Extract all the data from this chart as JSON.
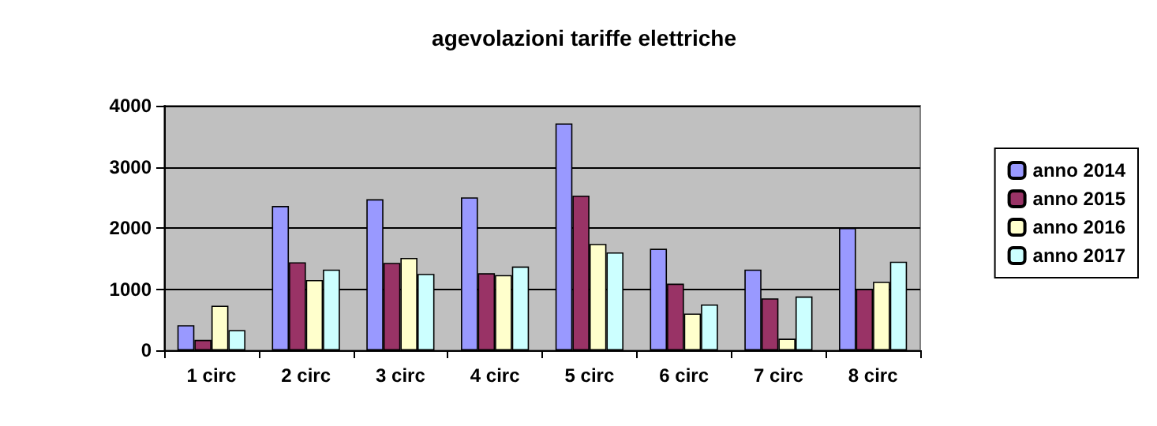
{
  "chart_data": {
    "type": "bar",
    "title": "agevolazioni tariffe elettriche",
    "categories": [
      "1 circ",
      "2 circ",
      "3 circ",
      "4 circ",
      "5 circ",
      "6 circ",
      "7 circ",
      "8 circ"
    ],
    "series": [
      {
        "name": "anno 2014",
        "color": "#9999ff",
        "values": [
          410,
          2360,
          2470,
          2500,
          3710,
          1660,
          1320,
          2000
        ]
      },
      {
        "name": "anno 2015",
        "color": "#993366",
        "values": [
          170,
          1440,
          1430,
          1260,
          2530,
          1090,
          850,
          1000
        ]
      },
      {
        "name": "anno 2016",
        "color": "#ffffcc",
        "values": [
          730,
          1150,
          1510,
          1230,
          1740,
          600,
          190,
          1120
        ]
      },
      {
        "name": "anno 2017",
        "color": "#ccffff",
        "values": [
          330,
          1320,
          1250,
          1370,
          1600,
          750,
          880,
          1450
        ]
      }
    ],
    "ylim": [
      0,
      4000
    ],
    "yticks": [
      0,
      1000,
      2000,
      3000,
      4000
    ],
    "grid": "y",
    "legend": "right"
  }
}
